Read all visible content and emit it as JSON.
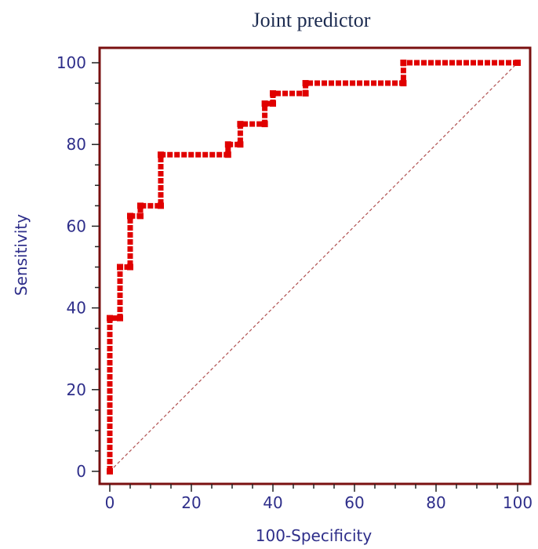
{
  "chart_data": {
    "type": "line",
    "title": "Joint predictor",
    "xlabel": "100-Specificity",
    "ylabel": "Sensitivity",
    "xlim": [
      0,
      100
    ],
    "ylim": [
      0,
      100
    ],
    "xticks": [
      0,
      20,
      40,
      60,
      80,
      100
    ],
    "yticks": [
      0,
      20,
      40,
      60,
      80,
      100
    ],
    "grid": false,
    "series": [
      {
        "style": "roc-step",
        "color": "#e00000",
        "points": [
          [
            0,
            0
          ],
          [
            0,
            37.5
          ],
          [
            2.5,
            37.5
          ],
          [
            2.5,
            50
          ],
          [
            5,
            50
          ],
          [
            5,
            62.5
          ],
          [
            7.5,
            62.5
          ],
          [
            7.5,
            65
          ],
          [
            12.5,
            65
          ],
          [
            12.5,
            77.5
          ],
          [
            29,
            77.5
          ],
          [
            29,
            80
          ],
          [
            32,
            80
          ],
          [
            32,
            85
          ],
          [
            38,
            85
          ],
          [
            38,
            90
          ],
          [
            40,
            90
          ],
          [
            40,
            92.5
          ],
          [
            48,
            92.5
          ],
          [
            48,
            95
          ],
          [
            72,
            95
          ],
          [
            72,
            100
          ],
          [
            100,
            100
          ]
        ]
      },
      {
        "style": "reference-diagonal",
        "color": "#b05050",
        "points": [
          [
            0,
            0
          ],
          [
            100,
            100
          ]
        ]
      }
    ],
    "frame_color": "#7a1010",
    "text_color": "#2e2e8a"
  }
}
